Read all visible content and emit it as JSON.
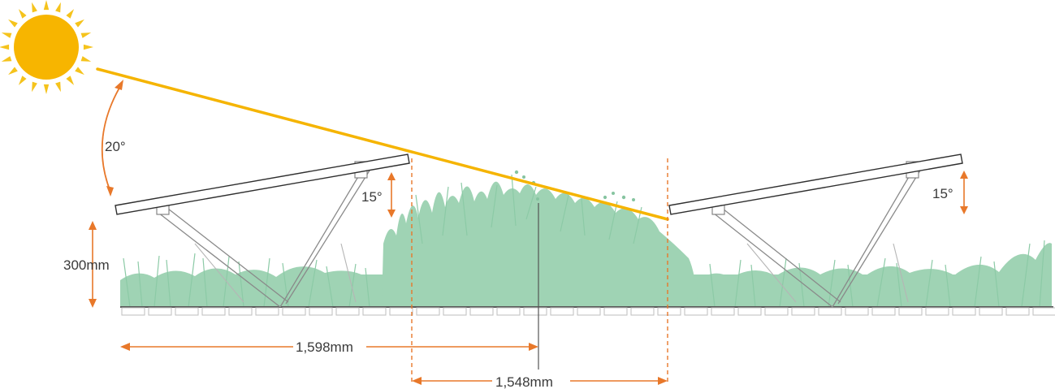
{
  "diagram": {
    "labels": {
      "sun_angle": "20°",
      "left_tilt": "15°",
      "right_tilt": "15°",
      "height": "300mm",
      "row_pitch": "1,598mm",
      "gap": "1,548mm"
    },
    "colors": {
      "sun": "#f7b500",
      "sun_ray": "#f5c31c",
      "sun_beam": "#f5b400",
      "dimension": "#e8782a",
      "grass": "#9fd3b4",
      "panel_outline": "#2f2f2f",
      "frame": "#8a8a8a",
      "ground": "#5a5a5a"
    },
    "icons": [
      "sun-icon",
      "solar-panel",
      "mounting-frame",
      "grass",
      "ground-ballast"
    ]
  }
}
